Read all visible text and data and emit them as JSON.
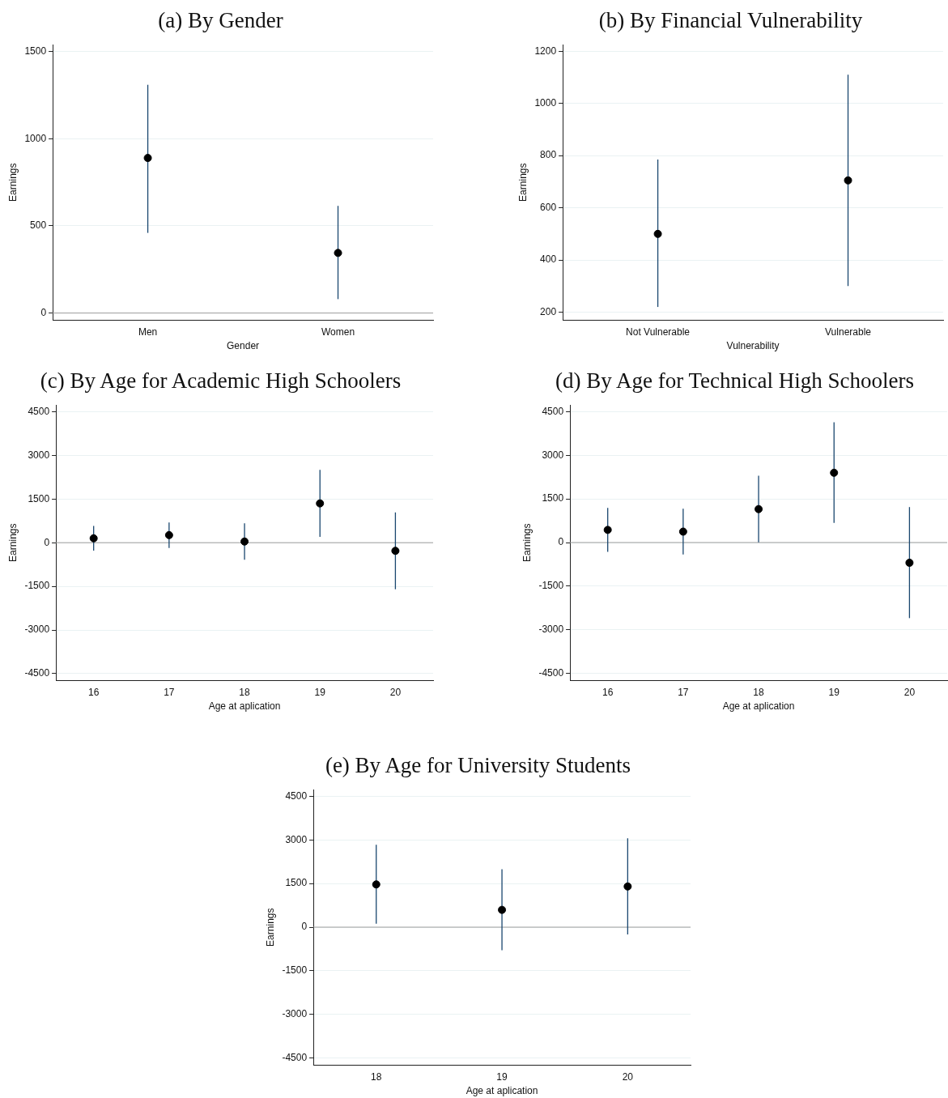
{
  "chart_data": [
    {
      "type": "scatter",
      "title": "(a) By Gender",
      "xlabel": "Gender",
      "ylabel": "Earnings",
      "categories": [
        "Men",
        "Women"
      ],
      "values": [
        890,
        345
      ],
      "errors": [
        [
          460,
          1310
        ],
        [
          80,
          615
        ]
      ],
      "color": "#000000",
      "marker": "circle",
      "ylim": [
        -40,
        1540
      ],
      "yticks": [
        0,
        500,
        1000,
        1500
      ],
      "grid": "y",
      "ref_lines": [
        {
          "axis": "y",
          "value": 0,
          "color": "#9e9e9e"
        }
      ]
    },
    {
      "type": "scatter",
      "title": "(b) By Financial Vulnerability",
      "xlabel": "Vulnerability",
      "ylabel": "Earnings",
      "categories": [
        "Not Vulnerable",
        "Vulnerable"
      ],
      "values": [
        500,
        705
      ],
      "errors": [
        [
          220,
          785
        ],
        [
          300,
          1110
        ]
      ],
      "color": "#000000",
      "marker": "circle",
      "ylim": [
        170,
        1225
      ],
      "yticks": [
        200,
        400,
        600,
        800,
        1000,
        1200
      ],
      "grid": "y"
    },
    {
      "type": "scatter",
      "title": "(c) By Age for Academic High Schoolers",
      "xlabel": "Age at aplication",
      "ylabel": "Earnings",
      "categories": [
        "16",
        "17",
        "18",
        "19",
        "20"
      ],
      "values": [
        150,
        260,
        40,
        1350,
        -280
      ],
      "errors": [
        [
          -270,
          575
        ],
        [
          -180,
          695
        ],
        [
          -585,
          665
        ],
        [
          200,
          2500
        ],
        [
          -1600,
          1040
        ]
      ],
      "color": "#000000",
      "marker": "circle",
      "ylim": [
        -4730,
        4730
      ],
      "yticks": [
        -4500,
        -3000,
        -1500,
        0,
        1500,
        3000,
        4500
      ],
      "grid": "y",
      "ref_lines": [
        {
          "axis": "y",
          "value": 0,
          "color": "#9e9e9e"
        }
      ]
    },
    {
      "type": "scatter",
      "title": "(d) By Age for Technical High Schoolers",
      "xlabel": "Age at aplication",
      "ylabel": "Earnings",
      "categories": [
        "16",
        "17",
        "18",
        "19",
        "20"
      ],
      "values": [
        435,
        375,
        1150,
        2400,
        -695
      ],
      "errors": [
        [
          -320,
          1190
        ],
        [
          -410,
          1160
        ],
        [
          10,
          2295
        ],
        [
          675,
          4140
        ],
        [
          -2600,
          1220
        ]
      ],
      "color": "#000000",
      "marker": "circle",
      "ylim": [
        -4740,
        4730
      ],
      "yticks": [
        -4500,
        -3000,
        -1500,
        0,
        1500,
        3000,
        4500
      ],
      "grid": "y",
      "ref_lines": [
        {
          "axis": "y",
          "value": 0,
          "color": "#9e9e9e"
        }
      ]
    },
    {
      "type": "scatter",
      "title": "(e) By Age for University Students",
      "xlabel": "Age at aplication",
      "ylabel": "Earnings",
      "categories": [
        "18",
        "19",
        "20"
      ],
      "values": [
        1470,
        595,
        1400
      ],
      "errors": [
        [
          120,
          2835
        ],
        [
          -790,
          1990
        ],
        [
          -250,
          3060
        ]
      ],
      "color": "#000000",
      "marker": "circle",
      "ylim": [
        -4740,
        4730
      ],
      "yticks": [
        -4500,
        -3000,
        -1500,
        0,
        1500,
        3000,
        4500
      ],
      "grid": "y",
      "ref_lines": [
        {
          "axis": "y",
          "value": 0,
          "color": "#9e9e9e"
        }
      ]
    }
  ]
}
